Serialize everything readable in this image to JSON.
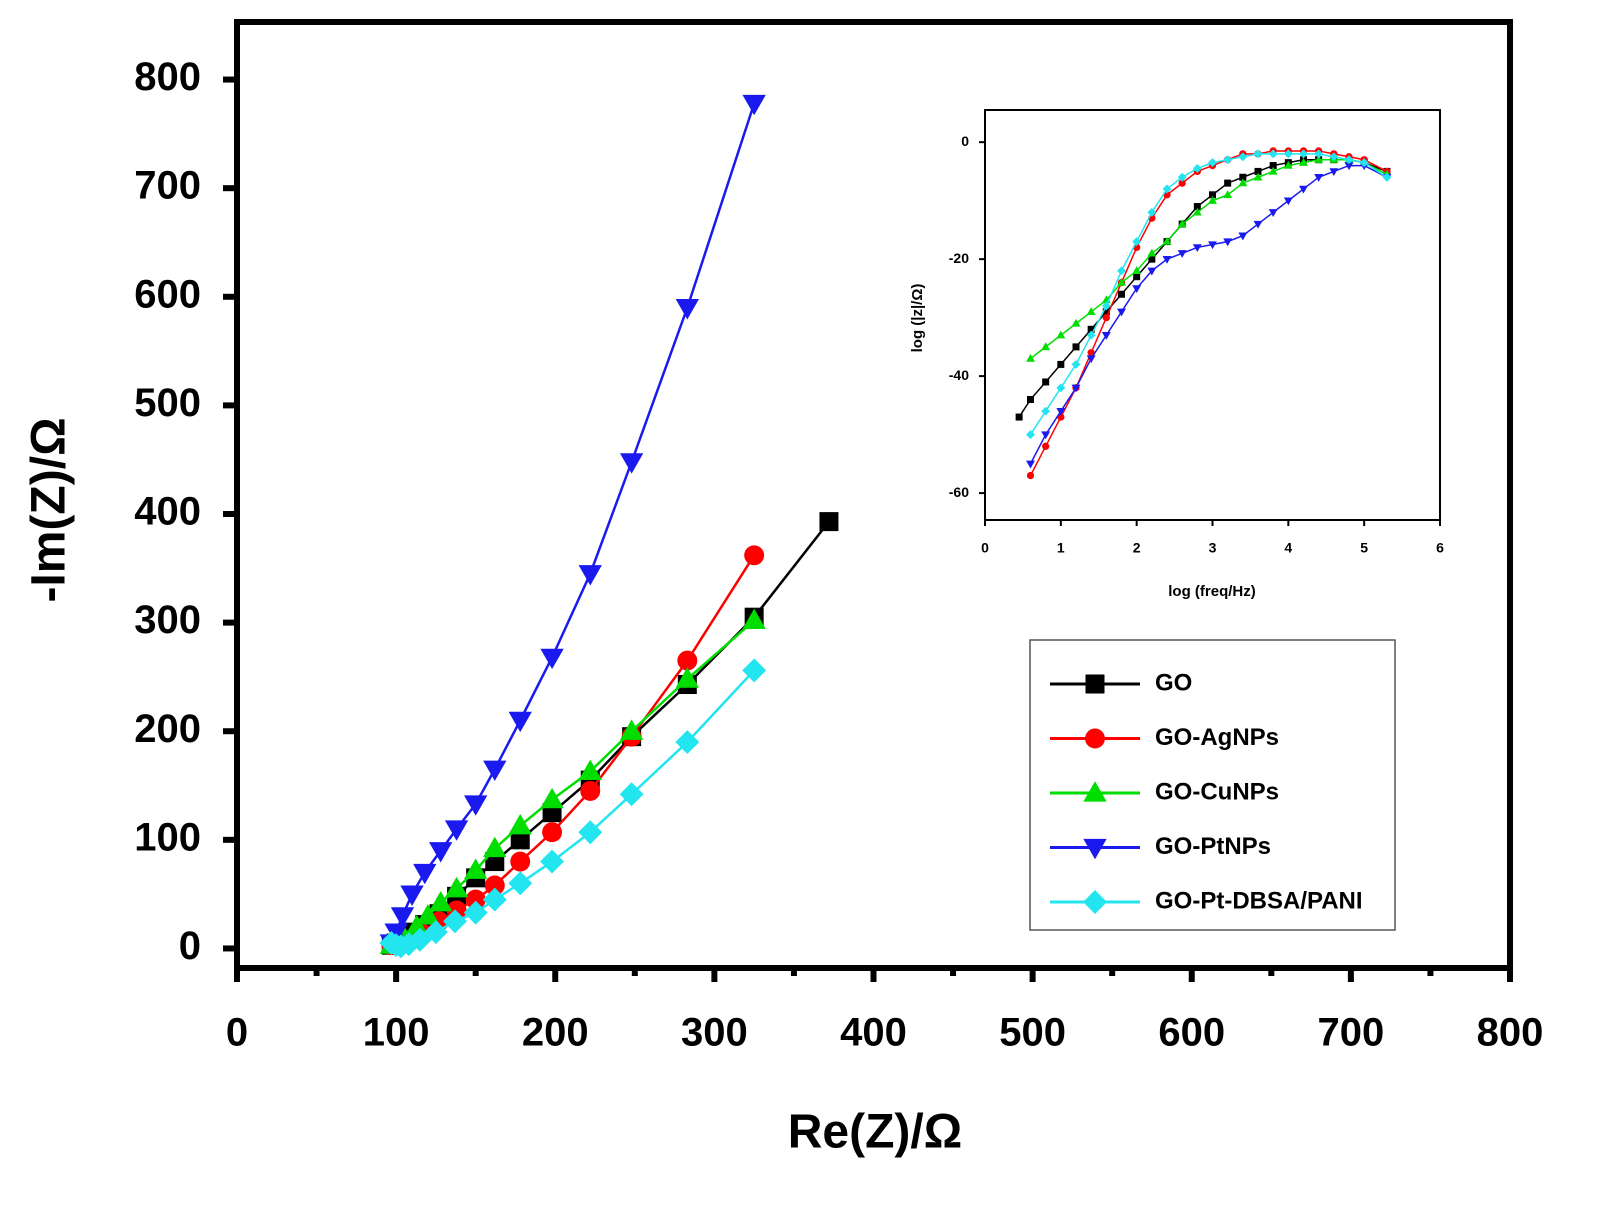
{
  "chart_data": [
    {
      "type": "line",
      "xlabel": "Re(Z)/Ω",
      "ylabel": "-Im(Z)/Ω",
      "xlim": [
        0,
        800
      ],
      "ylim": [
        -18,
        853
      ],
      "xticks": [
        0,
        100,
        200,
        300,
        400,
        500,
        600,
        700,
        800
      ],
      "xminorticks": [
        50,
        150,
        250,
        350,
        450,
        550,
        650,
        750
      ],
      "yticks": [
        0,
        100,
        200,
        300,
        400,
        500,
        600,
        700,
        800
      ],
      "legend": "lower right",
      "series": [
        {
          "name": "GO",
          "color": "#000000",
          "marker": "square",
          "x": [
            97,
            100,
            105,
            110,
            118,
            127,
            138,
            150,
            162,
            178,
            198,
            222,
            248,
            283,
            325,
            372
          ],
          "values": [
            3,
            5,
            10,
            15,
            22,
            32,
            48,
            65,
            80,
            100,
            125,
            155,
            195,
            243,
            305,
            393
          ]
        },
        {
          "name": "GO-AgNPs",
          "color": "#ff0000",
          "marker": "circle",
          "x": [
            97,
            105,
            115,
            127,
            138,
            150,
            162,
            178,
            198,
            222,
            248,
            283,
            325
          ],
          "values": [
            3,
            8,
            15,
            25,
            35,
            45,
            58,
            80,
            107,
            145,
            195,
            265,
            362
          ]
        },
        {
          "name": "GO-CuNPs",
          "color": "#00dd00",
          "marker": "triangle-up",
          "x": [
            97,
            105,
            113,
            120,
            128,
            138,
            150,
            162,
            178,
            198,
            222,
            248,
            283,
            325
          ],
          "values": [
            3,
            10,
            20,
            30,
            42,
            55,
            72,
            92,
            113,
            137,
            163,
            200,
            248,
            302
          ]
        },
        {
          "name": "GO-PtNPs",
          "color": "#1a1aee",
          "marker": "triangle-down",
          "x": [
            97,
            100,
            104,
            110,
            118,
            128,
            138,
            150,
            162,
            178,
            198,
            222,
            248,
            283,
            325
          ],
          "values": [
            5,
            15,
            30,
            50,
            70,
            90,
            110,
            133,
            165,
            210,
            268,
            345,
            448,
            590,
            778
          ]
        },
        {
          "name": "GO-Pt-DBSA/PANI",
          "color": "#22e5f0",
          "marker": "diamond",
          "x": [
            97,
            100,
            103,
            108,
            115,
            125,
            137,
            150,
            162,
            178,
            198,
            222,
            248,
            283,
            325
          ],
          "values": [
            5,
            3,
            2,
            4,
            8,
            15,
            25,
            33,
            45,
            60,
            80,
            107,
            142,
            190,
            256
          ]
        }
      ]
    },
    {
      "type": "line",
      "xlabel": "log (freq/Hz)",
      "ylabel": "log (|z|/Ω)",
      "xlim": [
        0,
        6
      ],
      "ylim": [
        -64.6,
        5.5
      ],
      "xticks": [
        0,
        1,
        2,
        3,
        4,
        5,
        6
      ],
      "yticks": [
        0,
        -20,
        -40,
        -60
      ],
      "series": [
        {
          "color": "#000000",
          "marker": "square",
          "x": [
            0.45,
            0.6,
            0.8,
            1,
            1.2,
            1.4,
            1.6,
            1.8,
            2,
            2.2,
            2.4,
            2.6,
            2.8,
            3,
            3.2,
            3.4,
            3.6,
            3.8,
            4,
            4.2,
            4.4,
            4.6,
            4.8,
            5,
            5.3
          ],
          "values": [
            -47,
            -44,
            -41,
            -38,
            -35,
            -32,
            -29,
            -26,
            -23,
            -20,
            -17,
            -14,
            -11,
            -9,
            -7,
            -6,
            -5,
            -4,
            -3.5,
            -3,
            -3,
            -3,
            -3,
            -3.5,
            -5
          ]
        },
        {
          "color": "#ff0000",
          "marker": "circle",
          "x": [
            0.6,
            0.8,
            1,
            1.2,
            1.4,
            1.6,
            1.8,
            2,
            2.2,
            2.4,
            2.6,
            2.8,
            3,
            3.2,
            3.4,
            3.6,
            3.8,
            4,
            4.2,
            4.4,
            4.6,
            4.8,
            5,
            5.3
          ],
          "values": [
            -57,
            -52,
            -47,
            -42,
            -36,
            -30,
            -24,
            -18,
            -13,
            -9,
            -7,
            -5,
            -4,
            -3,
            -2,
            -2,
            -1.5,
            -1.5,
            -1.5,
            -1.5,
            -2,
            -2.5,
            -3,
            -5
          ]
        },
        {
          "color": "#00dd00",
          "marker": "triangle-up",
          "x": [
            0.6,
            0.8,
            1,
            1.2,
            1.4,
            1.6,
            1.8,
            2,
            2.2,
            2.4,
            2.6,
            2.8,
            3,
            3.2,
            3.4,
            3.6,
            3.8,
            4,
            4.2,
            4.4,
            4.6,
            4.8,
            5,
            5.3
          ],
          "values": [
            -37,
            -35,
            -33,
            -31,
            -29,
            -27,
            -24,
            -22,
            -19,
            -17,
            -14,
            -12,
            -10,
            -9,
            -7,
            -6,
            -5,
            -4,
            -3.5,
            -3,
            -3,
            -3,
            -3.5,
            -5.5
          ]
        },
        {
          "color": "#1a1aee",
          "marker": "triangle-down",
          "x": [
            0.6,
            0.8,
            1,
            1.2,
            1.4,
            1.6,
            1.8,
            2,
            2.2,
            2.4,
            2.6,
            2.8,
            3,
            3.2,
            3.4,
            3.6,
            3.8,
            4,
            4.2,
            4.4,
            4.6,
            4.8,
            5,
            5.3
          ],
          "values": [
            -55,
            -50,
            -46,
            -42,
            -37,
            -33,
            -29,
            -25,
            -22,
            -20,
            -19,
            -18,
            -17.5,
            -17,
            -16,
            -14,
            -12,
            -10,
            -8,
            -6,
            -5,
            -4,
            -4,
            -6
          ]
        },
        {
          "color": "#22e5f0",
          "marker": "diamond",
          "x": [
            0.6,
            0.8,
            1,
            1.2,
            1.4,
            1.6,
            1.8,
            2,
            2.2,
            2.4,
            2.6,
            2.8,
            3,
            3.2,
            3.4,
            3.6,
            3.8,
            4,
            4.2,
            4.4,
            4.6,
            4.8,
            5,
            5.3
          ],
          "values": [
            -50,
            -46,
            -42,
            -38,
            -33,
            -28,
            -22,
            -17,
            -12,
            -8,
            -6,
            -4.5,
            -3.5,
            -3,
            -2.5,
            -2,
            -2,
            -2,
            -2,
            -2,
            -2.5,
            -3,
            -3.5,
            -6
          ]
        }
      ]
    }
  ]
}
